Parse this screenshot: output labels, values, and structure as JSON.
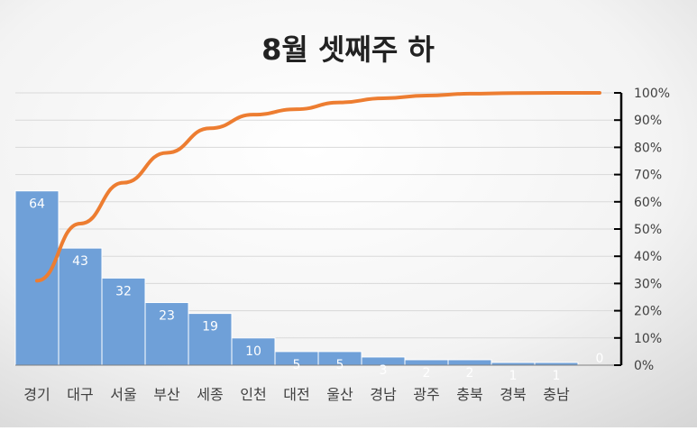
{
  "chart_data": {
    "type": "pareto",
    "title": "8월 셋째주 하",
    "categories": [
      "경기",
      "대구",
      "서울",
      "부산",
      "세종",
      "인천",
      "대전",
      "울산",
      "경남",
      "광주",
      "충북",
      "경북",
      "충남"
    ],
    "bar_series": {
      "name": "count",
      "values": [
        64,
        43,
        32,
        23,
        19,
        10,
        5,
        5,
        3,
        2,
        2,
        1,
        1
      ],
      "data_labels": [
        "64",
        "43",
        "32",
        "23",
        "19",
        "10",
        "5",
        "5",
        "3",
        "2",
        "2",
        "1",
        "1"
      ]
    },
    "trailing_label": "0",
    "line_series": {
      "name": "cumulative",
      "values": [
        0.31,
        0.52,
        0.67,
        0.78,
        0.87,
        0.92,
        0.94,
        0.965,
        0.98,
        0.99,
        0.997,
        0.999,
        1.0,
        1.0
      ]
    },
    "right_axis": {
      "ylim": [
        0,
        1
      ],
      "tick_values": [
        0,
        0.1,
        0.2,
        0.3,
        0.4,
        0.5,
        0.6,
        0.7,
        0.8,
        0.9,
        1.0
      ],
      "tick_labels": [
        "0%",
        "10%",
        "20%",
        "30%",
        "40%",
        "50%",
        "60%",
        "70%",
        "80%",
        "90%",
        "100%"
      ]
    },
    "left_axis": {
      "ylim": [
        0,
        100
      ]
    },
    "grid": true,
    "colors": {
      "bar": "#6fa0d8",
      "bar_edge": "#5b8fcc",
      "line": "#ed7d31",
      "axis": "#000000",
      "grid": "#d9d9d9"
    }
  }
}
